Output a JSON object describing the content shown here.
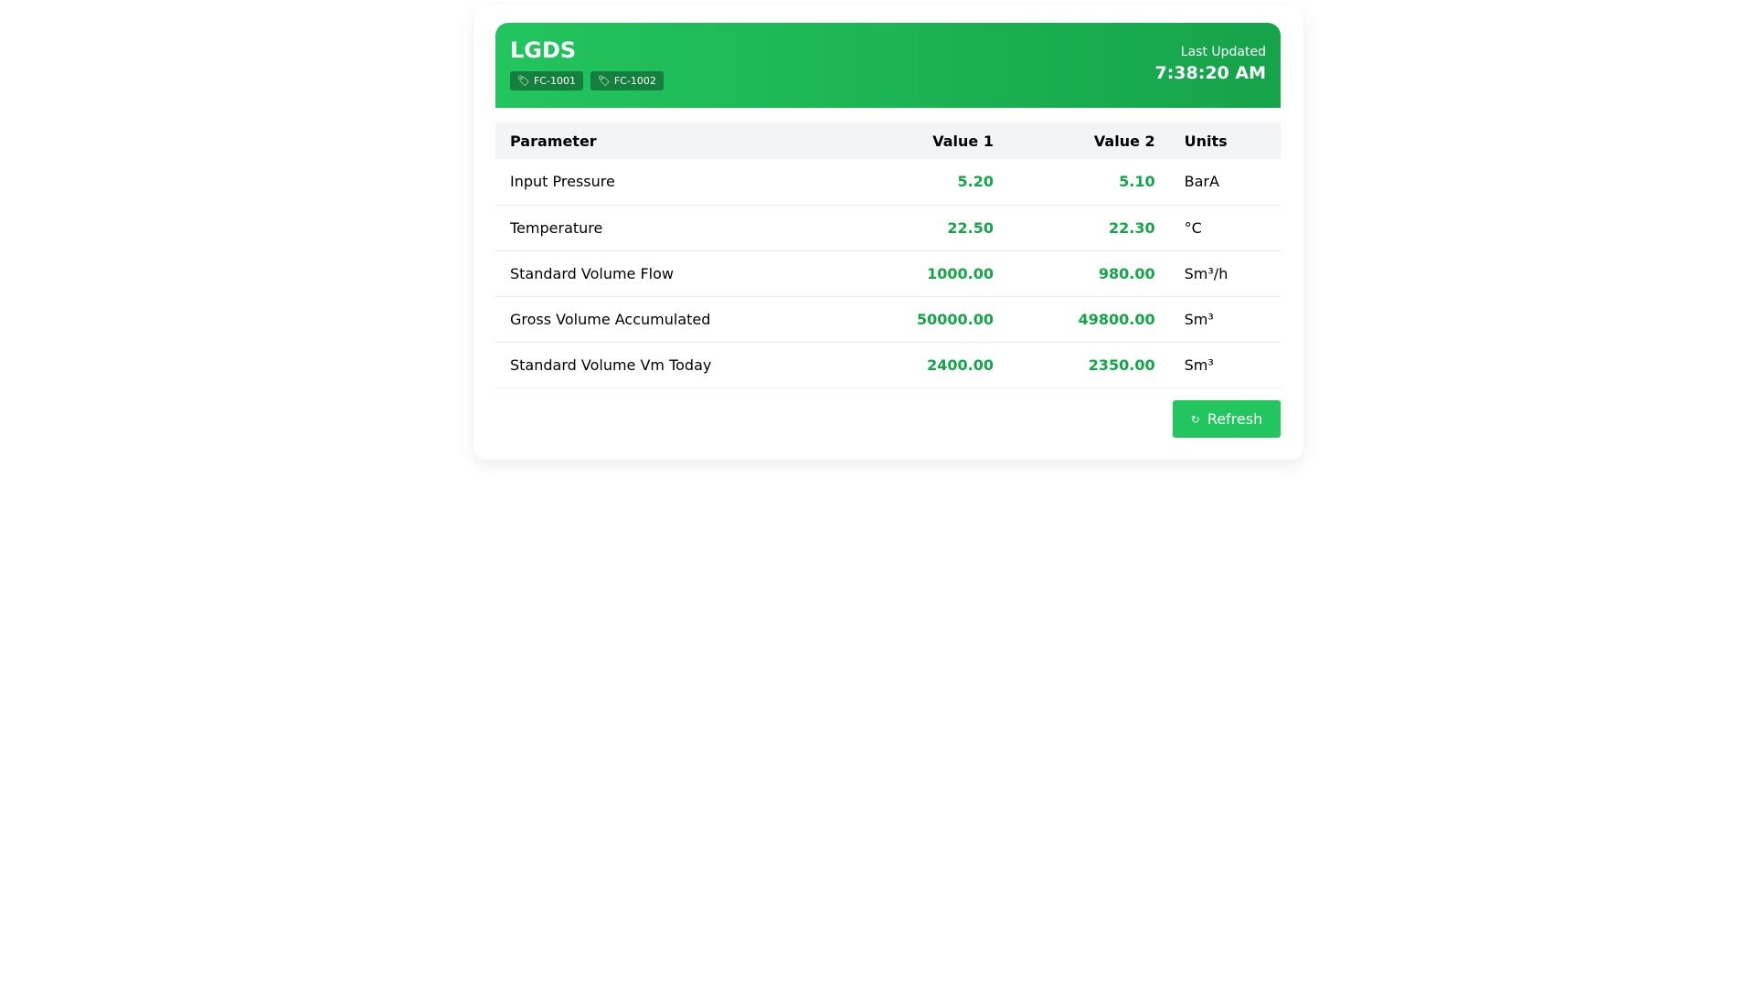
{
  "header": {
    "title": "LGDS",
    "tags": [
      "FC-1001",
      "FC-1002"
    ],
    "last_updated_label": "Last Updated",
    "last_updated_time": "7:38:20 AM"
  },
  "table": {
    "columns": [
      "Parameter",
      "Value 1",
      "Value 2",
      "Units"
    ],
    "rows": [
      [
        "Input Pressure",
        "5.20",
        "5.10",
        "BarA"
      ],
      [
        "Temperature",
        "22.50",
        "22.30",
        "°C"
      ],
      [
        "Standard Volume Flow",
        "1000.00",
        "980.00",
        "Sm³/h"
      ],
      [
        "Gross Volume Accumulated",
        "50000.00",
        "49800.00",
        "Sm³"
      ],
      [
        "Standard Volume Vm Today",
        "2400.00",
        "2350.00",
        "Sm³"
      ]
    ]
  },
  "refresh_label": "Refresh",
  "colors": {
    "accent": "#22c55e",
    "value": "#16a34a",
    "tag_bg": "#15803d"
  }
}
